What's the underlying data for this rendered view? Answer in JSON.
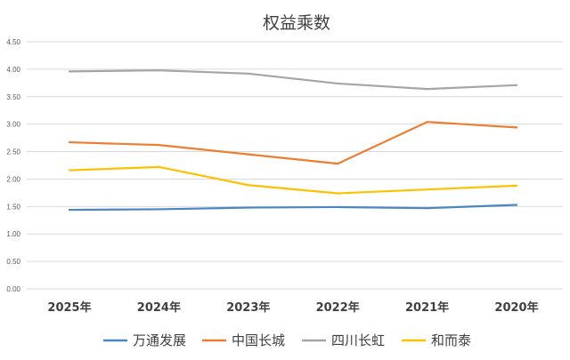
{
  "chart_data": {
    "type": "line",
    "title": "权益乘数",
    "xlabel": "",
    "ylabel": "",
    "categories": [
      "2025年",
      "2024年",
      "2023年",
      "2022年",
      "2021年",
      "2020年"
    ],
    "ylim": [
      0,
      4.5
    ],
    "yticks": [
      "0.00",
      "0.50",
      "1.00",
      "1.50",
      "2.00",
      "2.50",
      "3.00",
      "3.50",
      "4.00",
      "4.50"
    ],
    "grid": true,
    "legend_position": "bottom",
    "series": [
      {
        "name": "万通发展",
        "color": "#4a86c5",
        "values": [
          1.44,
          1.45,
          1.48,
          1.49,
          1.47,
          1.53
        ]
      },
      {
        "name": "中国长城",
        "color": "#ed7d31",
        "values": [
          2.67,
          2.62,
          2.45,
          2.28,
          3.04,
          2.94
        ]
      },
      {
        "name": "四川长虹",
        "color": "#a5a5a5",
        "values": [
          3.96,
          3.98,
          3.92,
          3.74,
          3.64,
          3.71
        ]
      },
      {
        "name": "和而泰",
        "color": "#ffc000",
        "values": [
          2.16,
          2.22,
          1.89,
          1.74,
          1.81,
          1.88
        ]
      }
    ]
  }
}
